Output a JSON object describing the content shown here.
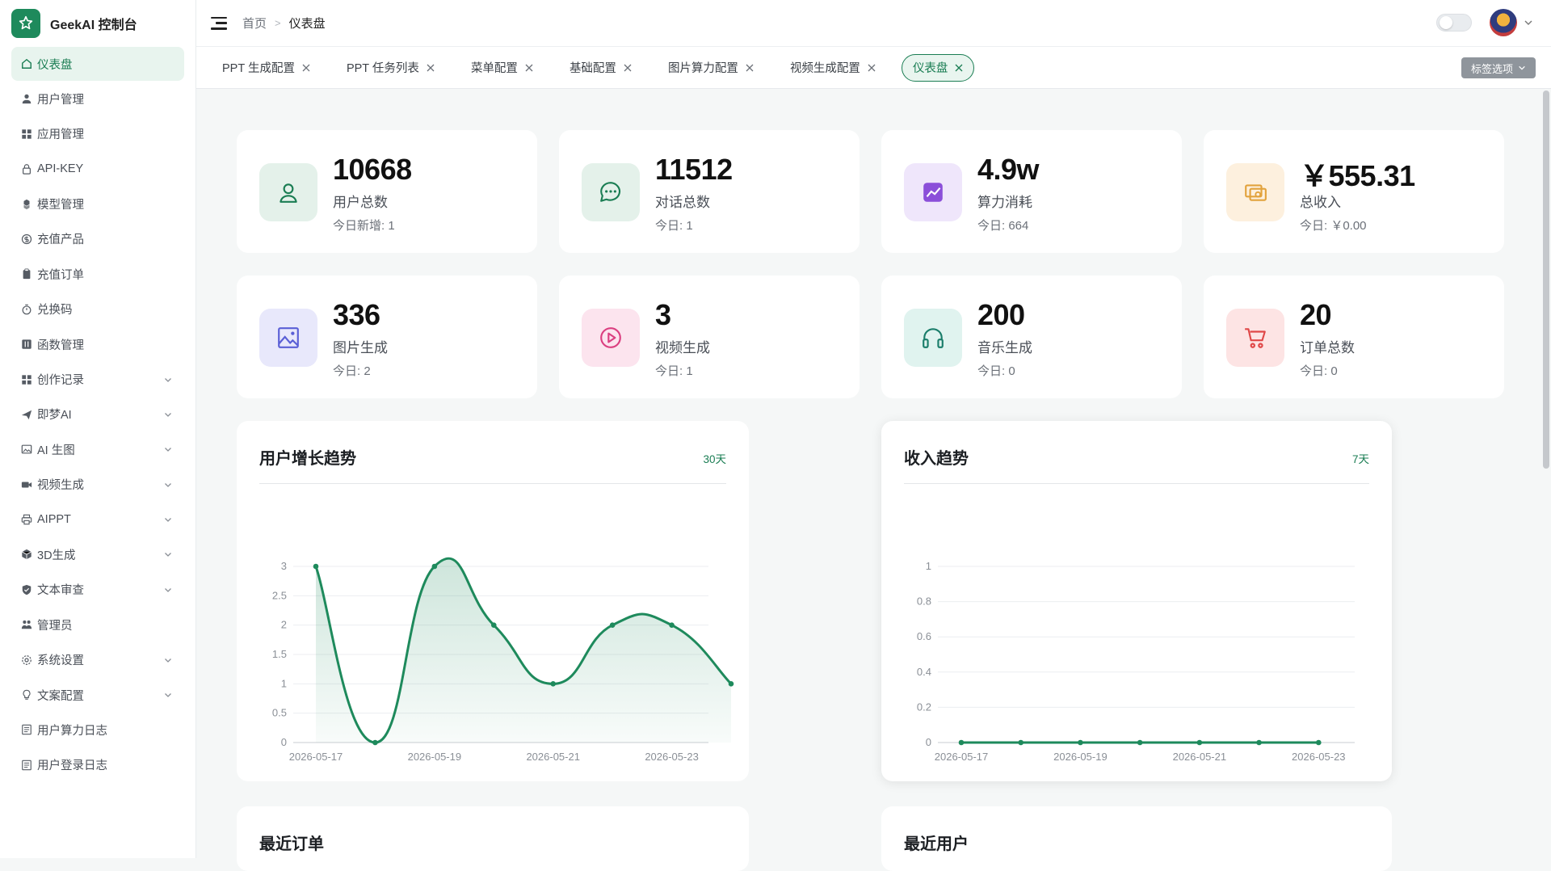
{
  "brand": {
    "title": "GeekAI 控制台"
  },
  "sidebar": {
    "items": [
      {
        "label": "仪表盘",
        "icon": "home-icon",
        "active": true,
        "expandable": false
      },
      {
        "label": "用户管理",
        "icon": "user-icon",
        "expandable": false
      },
      {
        "label": "应用管理",
        "icon": "grid-icon",
        "expandable": false
      },
      {
        "label": "API-KEY",
        "icon": "lock-icon",
        "expandable": false
      },
      {
        "label": "模型管理",
        "icon": "cubes-icon",
        "expandable": false
      },
      {
        "label": "充值产品",
        "icon": "coin-icon",
        "expandable": false
      },
      {
        "label": "充值订单",
        "icon": "clipboard-icon",
        "expandable": false
      },
      {
        "label": "兑换码",
        "icon": "timer-icon",
        "expandable": false
      },
      {
        "label": "函数管理",
        "icon": "function-icon",
        "expandable": false
      },
      {
        "label": "创作记录",
        "icon": "grid-icon",
        "expandable": true
      },
      {
        "label": "即梦AI",
        "icon": "plane-icon",
        "expandable": true
      },
      {
        "label": "AI 生图",
        "icon": "image-icon",
        "expandable": true
      },
      {
        "label": "视频生成",
        "icon": "video-icon",
        "expandable": true
      },
      {
        "label": "AIPPT",
        "icon": "printer-icon",
        "expandable": true
      },
      {
        "label": "3D生成",
        "icon": "box-icon",
        "expandable": true
      },
      {
        "label": "文本审查",
        "icon": "shield-icon",
        "expandable": true
      },
      {
        "label": "管理员",
        "icon": "admin-icon",
        "expandable": false
      },
      {
        "label": "系统设置",
        "icon": "gear-icon",
        "expandable": true
      },
      {
        "label": "文案配置",
        "icon": "bulb-icon",
        "expandable": true
      },
      {
        "label": "用户算力日志",
        "icon": "list-icon",
        "expandable": false
      },
      {
        "label": "用户登录日志",
        "icon": "list-icon",
        "expandable": false
      }
    ]
  },
  "header": {
    "breadcrumb_home": "首页",
    "breadcrumb_current": "仪表盘"
  },
  "tabs": {
    "items": [
      {
        "label": "PPT 生成配置",
        "active": false
      },
      {
        "label": "PPT 任务列表",
        "active": false
      },
      {
        "label": "菜单配置",
        "active": false
      },
      {
        "label": "基础配置",
        "active": false
      },
      {
        "label": "图片算力配置",
        "active": false
      },
      {
        "label": "视频生成配置",
        "active": false
      },
      {
        "label": "仪表盘",
        "active": true
      }
    ],
    "options_label": "标签选项"
  },
  "stats": [
    {
      "value": "10668",
      "label": "用户总数",
      "sub": "今日新增: 1",
      "icon": "user-icon",
      "bg": "#e4f1ea",
      "fg": "#1a7d53"
    },
    {
      "value": "11512",
      "label": "对话总数",
      "sub": "今日: 1",
      "icon": "chat-icon",
      "bg": "#e4f1ea",
      "fg": "#1a7d53"
    },
    {
      "value": "4.9w",
      "label": "算力消耗",
      "sub": "今日: 664",
      "icon": "trend-icon",
      "bg": "#efe6fb",
      "fg": "#8b4fd9"
    },
    {
      "value": "￥555.31",
      "label": "总收入",
      "sub": "今日: ￥0.00",
      "icon": "money-icon",
      "bg": "#fdf0de",
      "fg": "#e2a23c"
    },
    {
      "value": "336",
      "label": "图片生成",
      "sub": "今日: 2",
      "icon": "picture-icon",
      "bg": "#e8e8fb",
      "fg": "#5a5fd6"
    },
    {
      "value": "3",
      "label": "视频生成",
      "sub": "今日: 1",
      "icon": "play-icon",
      "bg": "#fce4ee",
      "fg": "#db3f80"
    },
    {
      "value": "200",
      "label": "音乐生成",
      "sub": "今日: 0",
      "icon": "headphone-icon",
      "bg": "#e0f3ef",
      "fg": "#1a7d6a"
    },
    {
      "value": "20",
      "label": "订单总数",
      "sub": "今日: 0",
      "icon": "cart-icon",
      "bg": "#fde4e4",
      "fg": "#e04848"
    }
  ],
  "panels": {
    "user_growth": {
      "title": "用户增长趋势",
      "range": "30天"
    },
    "income": {
      "title": "收入趋势",
      "range": "7天"
    },
    "recent_orders": {
      "title": "最近订单"
    },
    "recent_users": {
      "title": "最近用户"
    }
  },
  "colors": {
    "accent": "#1a7d53",
    "line": "#1e8a5c"
  },
  "chart_data": [
    {
      "type": "area",
      "x": [
        "2026-05-17",
        "2026-05-18",
        "2026-05-19",
        "2026-05-20",
        "2026-05-21",
        "2026-05-22",
        "2026-05-23",
        "2026-05-24"
      ],
      "tick_labels": [
        "2026-05-17",
        "2026-05-19",
        "2026-05-21",
        "2026-05-23"
      ],
      "values": [
        3,
        0,
        3,
        2,
        1,
        2,
        2,
        1
      ],
      "ylim": [
        0,
        3
      ],
      "yticks": [
        "0",
        "0.5",
        "1",
        "1.5",
        "2",
        "2.5",
        "3"
      ],
      "grid": true
    },
    {
      "type": "line",
      "x": [
        "2026-05-17",
        "2026-05-18",
        "2026-05-19",
        "2026-05-20",
        "2026-05-21",
        "2026-05-22",
        "2026-05-23"
      ],
      "tick_labels": [
        "2026-05-17",
        "2026-05-19",
        "2026-05-21",
        "2026-05-23"
      ],
      "values": [
        0,
        0,
        0,
        0,
        0,
        0,
        0
      ],
      "ylim": [
        0,
        1
      ],
      "yticks": [
        "0",
        "0.2",
        "0.4",
        "0.6",
        "0.8",
        "1"
      ],
      "grid": true
    }
  ]
}
